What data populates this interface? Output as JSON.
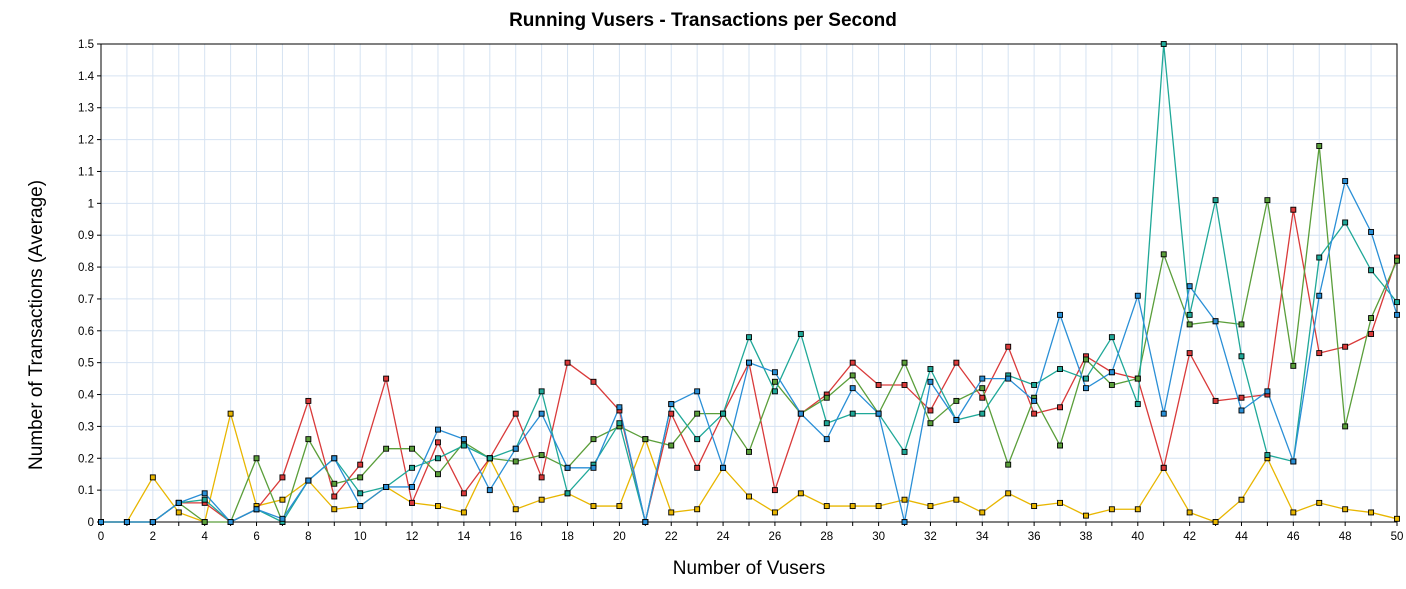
{
  "chart_data": {
    "type": "line",
    "title": "Running Vusers - Transactions per Second",
    "xlabel": "Number of Vusers",
    "ylabel": "Number of Transactions (Average)",
    "xlim": [
      0,
      50
    ],
    "ylim": [
      0,
      1.5
    ],
    "x_ticks": [
      "0",
      "2",
      "4",
      "6",
      "8",
      "10",
      "12",
      "14",
      "16",
      "18",
      "20",
      "22",
      "24",
      "26",
      "28",
      "30",
      "32",
      "34",
      "36",
      "38",
      "40",
      "42",
      "44",
      "46",
      "48",
      "50"
    ],
    "y_ticks": [
      "0",
      "0.1",
      "0.2",
      "0.3",
      "0.4",
      "0.5",
      "0.6",
      "0.7",
      "0.8",
      "0.9",
      "1",
      "1.1",
      "1.2",
      "1.3",
      "1.4",
      "1.5"
    ],
    "grid": true,
    "legend": "none",
    "x": [
      0,
      1,
      2,
      3,
      4,
      5,
      6,
      7,
      8,
      9,
      10,
      11,
      12,
      13,
      14,
      15,
      16,
      17,
      18,
      19,
      20,
      21,
      22,
      23,
      24,
      25,
      26,
      27,
      28,
      29,
      30,
      31,
      32,
      33,
      34,
      35,
      36,
      37,
      38,
      39,
      40,
      41,
      42,
      43,
      44,
      45,
      46,
      47,
      48,
      49,
      50
    ],
    "series": [
      {
        "color": "#e8b600",
        "values": [
          0,
          0,
          0.14,
          0.03,
          0,
          0.34,
          0.05,
          0.07,
          0.13,
          0.04,
          0.05,
          0.11,
          0.06,
          0.05,
          0.03,
          0.2,
          0.04,
          0.07,
          0.09,
          0.05,
          0.05,
          0.26,
          0.03,
          0.04,
          0.17,
          0.08,
          0.03,
          0.09,
          0.05,
          0.05,
          0.05,
          0.07,
          0.05,
          0.07,
          0.03,
          0.09,
          0.05,
          0.06,
          0.02,
          0.04,
          0.04,
          0.17,
          0.03,
          0,
          0.07,
          0.2,
          0.03,
          0.06,
          0.04,
          0.03,
          0.01
        ]
      },
      {
        "color": "#d93a3a",
        "values": [
          0,
          0,
          0,
          0.06,
          0.06,
          0,
          0.04,
          0.14,
          0.38,
          0.08,
          0.18,
          0.45,
          0.06,
          0.25,
          0.09,
          0.2,
          0.34,
          0.14,
          0.5,
          0.44,
          0.35,
          0,
          0.34,
          0.17,
          0.34,
          0.5,
          0.1,
          0.34,
          0.4,
          0.5,
          0.43,
          0.43,
          0.35,
          0.5,
          0.39,
          0.55,
          0.34,
          0.36,
          0.52,
          0.47,
          0.45,
          0.17,
          0.53,
          0.38,
          0.39,
          0.4,
          0.98,
          0.53,
          0.55,
          0.59,
          0.83
        ]
      },
      {
        "color": "#5a9e3a",
        "values": [
          0,
          0,
          0,
          0.06,
          0,
          0,
          0.2,
          0,
          0.26,
          0.12,
          0.14,
          0.23,
          0.23,
          0.15,
          0.25,
          0.2,
          0.19,
          0.21,
          0.17,
          0.26,
          0.3,
          0.26,
          0.24,
          0.34,
          0.34,
          0.22,
          0.44,
          0.34,
          0.39,
          0.46,
          0.34,
          0.5,
          0.31,
          0.38,
          0.42,
          0.18,
          0.39,
          0.24,
          0.51,
          0.43,
          0.45,
          0.84,
          0.62,
          0.63,
          0.62,
          1.01,
          0.49,
          1.18,
          0.3,
          0.64,
          0.82
        ]
      },
      {
        "color": "#1fa898",
        "values": [
          0,
          0,
          0,
          0.06,
          0.07,
          0,
          0.04,
          0,
          0.13,
          0.2,
          0.09,
          0.11,
          0.17,
          0.2,
          0.24,
          0.2,
          0.23,
          0.41,
          0.09,
          0.18,
          0.31,
          0,
          0.37,
          0.26,
          0.34,
          0.58,
          0.41,
          0.59,
          0.31,
          0.34,
          0.34,
          0.22,
          0.48,
          0.32,
          0.34,
          0.46,
          0.43,
          0.48,
          0.45,
          0.58,
          0.37,
          1.5,
          0.65,
          1.01,
          0.52,
          0.21,
          0.19,
          0.83,
          0.94,
          0.79,
          0.69
        ]
      },
      {
        "color": "#2a8fd6",
        "values": [
          0,
          0,
          0,
          0.06,
          0.09,
          0,
          0.04,
          0.01,
          0.13,
          0.2,
          0.05,
          0.11,
          0.11,
          0.29,
          0.26,
          0.1,
          0.23,
          0.34,
          0.17,
          0.17,
          0.36,
          0,
          0.37,
          0.41,
          0.17,
          0.5,
          0.47,
          0.34,
          0.26,
          0.42,
          0.34,
          0,
          0.44,
          0.32,
          0.45,
          0.45,
          0.38,
          0.65,
          0.42,
          0.47,
          0.71,
          0.34,
          0.74,
          0.63,
          0.35,
          0.41,
          0.19,
          0.71,
          1.07,
          0.91,
          0.65
        ]
      }
    ]
  }
}
